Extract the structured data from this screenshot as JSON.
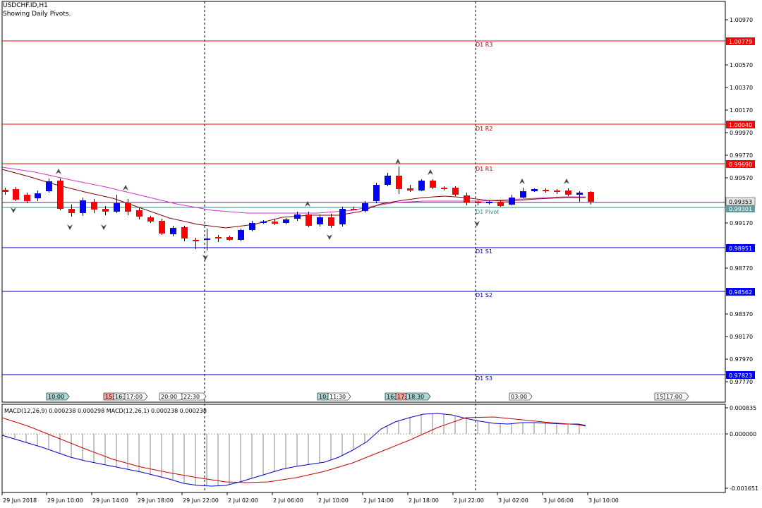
{
  "header": {
    "symbol_label": "USDCHF.ID,H1",
    "subtitle": "Showing Daily Pivots."
  },
  "colors": {
    "bull": "#0000ff",
    "bear": "#ff0000",
    "resistance": "#ff0000",
    "support": "#0000cc",
    "pivot": "#2f8f8f",
    "ma_fast": "#800000",
    "ma_slow": "#cc33cc",
    "macd_line": "#0000cc",
    "signal_line": "#cc0000",
    "label_dark_red": "#b00000"
  },
  "price_scale": {
    "ticks": [
      "1.00970",
      "1.00570",
      "1.00370",
      "1.00170",
      "0.99970",
      "0.99770",
      "0.99570",
      "0.99170",
      "0.98770",
      "0.98370",
      "0.98170",
      "0.97970",
      "0.97770"
    ]
  },
  "pivots": {
    "r3": {
      "label": "D1 R3",
      "price": "1.00779"
    },
    "r2": {
      "label": "D1 R2",
      "price": "1.00040"
    },
    "r1": {
      "label": "D1 R1",
      "price": "0.99690"
    },
    "pivot": {
      "label": "D1 Pivot",
      "price": "0.99301"
    },
    "current_price": "0.99353",
    "s1": {
      "label": "D1 S1",
      "price": "0.98951"
    },
    "s2": {
      "label": "D1 S2",
      "price": "0.98562"
    },
    "s3": {
      "label": "D1 S3",
      "price": "0.97823"
    }
  },
  "session_markers": [
    "10:00",
    "15:",
    "16:",
    "17:00",
    "20:00",
    "22:30",
    "10:",
    "11:30",
    "16:",
    "17:",
    "18:30",
    "03:00",
    "15",
    "17:00"
  ],
  "macd": {
    "label": "MACD(12,26,9) 0.000238 0.000298 MACD(12,26,1) 0.000238 0.000238",
    "scale": [
      "0.000835",
      "0.000000",
      "-0.001651"
    ]
  },
  "time_axis": [
    "29 Jun 2018",
    "29 Jun 10:00",
    "29 Jun 14:00",
    "29 Jun 18:00",
    "29 Jun 22:00",
    "2 Jul 02:00",
    "2 Jul 06:00",
    "2 Jul 10:00",
    "2 Jul 14:00",
    "2 Jul 18:00",
    "2 Jul 22:00",
    "3 Jul 02:00",
    "3 Jul 06:00",
    "3 Jul 10:00"
  ]
}
